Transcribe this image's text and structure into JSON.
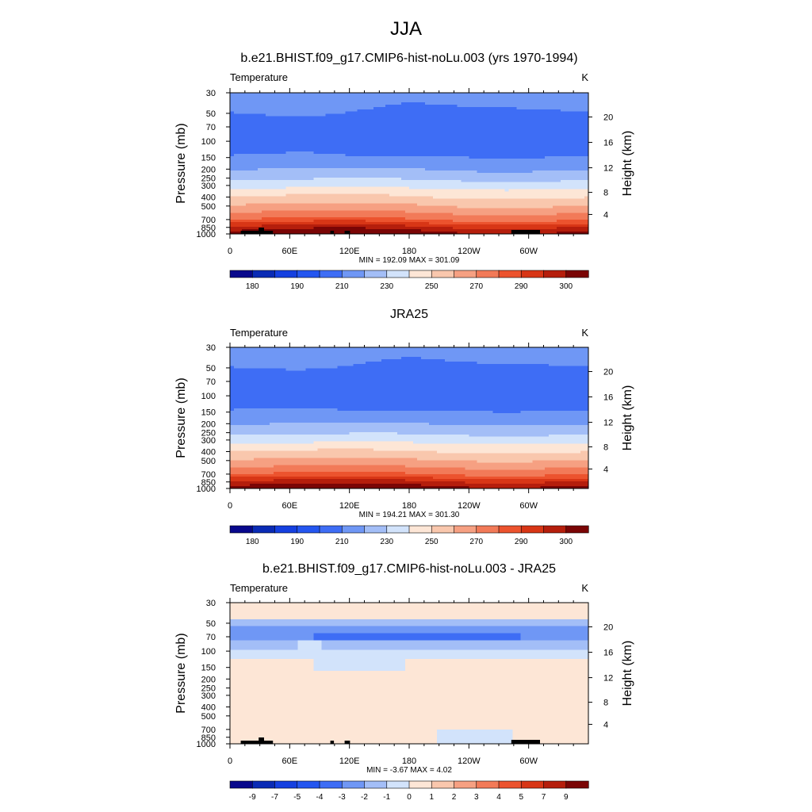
{
  "page_title": "JJA",
  "chart_data": [
    {
      "type": "heatmap",
      "title": "b.e21.BHIST.f09_g17.CMIP6-hist-noLu.003 (yrs 1970-1994)",
      "left_label": "Temperature",
      "right_label": "K",
      "ylabel": "Pressure (mb)",
      "y2label": "Height (km)",
      "x_ticks": [
        "0",
        "60E",
        "120E",
        "180",
        "120W",
        "60W"
      ],
      "pressure_ticks": [
        "30",
        "50",
        "70",
        "100",
        "150",
        "200",
        "250",
        "300",
        "400",
        "500",
        "700",
        "850",
        "1000"
      ],
      "height_ticks": [
        "20",
        "16",
        "12",
        "8",
        "4"
      ],
      "stats": "MIN = 192.09  MAX = 301.09",
      "min": 192.09,
      "max": 301.09,
      "colorbar_labels": [
        "180",
        "190",
        "210",
        "230",
        "250",
        "270",
        "290",
        "300"
      ],
      "palette": [
        "#08088c",
        "#0a2bb5",
        "#1540e0",
        "#2456f0",
        "#3e6df5",
        "#6f97f5",
        "#a3bef7",
        "#d2e3fb",
        "#fde6d6",
        "#f9c7ad",
        "#f6a082",
        "#f27a58",
        "#ec532e",
        "#d83616",
        "#b51e0c",
        "#7a0505"
      ],
      "levels": [
        "192",
        "198",
        "205",
        "210",
        "210",
        "207",
        "216",
        "223",
        "231",
        "240",
        "248",
        "256",
        "264",
        "272",
        "281",
        "289",
        "296"
      ]
    },
    {
      "type": "heatmap",
      "title": "JRA25",
      "left_label": "Temperature",
      "right_label": "K",
      "ylabel": "Pressure (mb)",
      "y2label": "Height (km)",
      "x_ticks": [
        "0",
        "60E",
        "120E",
        "180",
        "120W",
        "60W"
      ],
      "pressure_ticks": [
        "30",
        "50",
        "70",
        "100",
        "150",
        "200",
        "250",
        "300",
        "400",
        "500",
        "700",
        "850",
        "1000"
      ],
      "height_ticks": [
        "20",
        "16",
        "12",
        "8",
        "4"
      ],
      "stats": "MIN = 194.21  MAX = 301.30",
      "min": 194.21,
      "max": 301.3,
      "colorbar_labels": [
        "180",
        "190",
        "210",
        "230",
        "250",
        "270",
        "290",
        "300"
      ],
      "palette": [
        "#08088c",
        "#0a2bb5",
        "#1540e0",
        "#2456f0",
        "#3e6df5",
        "#6f97f5",
        "#a3bef7",
        "#d2e3fb",
        "#fde6d6",
        "#f9c7ad",
        "#f6a082",
        "#f27a58",
        "#ec532e",
        "#d83616",
        "#b51e0c",
        "#7a0505"
      ]
    },
    {
      "type": "heatmap",
      "title": "b.e21.BHIST.f09_g17.CMIP6-hist-noLu.003 - JRA25",
      "left_label": "Temperature",
      "right_label": "K",
      "ylabel": "Pressure (mb)",
      "y2label": "Height (km)",
      "x_ticks": [
        "0",
        "60E",
        "120E",
        "180",
        "120W",
        "60W"
      ],
      "pressure_ticks": [
        "30",
        "50",
        "70",
        "100",
        "150",
        "200",
        "250",
        "300",
        "400",
        "500",
        "700",
        "850",
        "1000"
      ],
      "height_ticks": [
        "20",
        "16",
        "12",
        "8",
        "4"
      ],
      "stats": "MIN =  -3.67  MAX =   4.02",
      "min": -3.67,
      "max": 4.02,
      "colorbar_labels": [
        "-9",
        "-7",
        "-5",
        "-4",
        "-3",
        "-2",
        "-1",
        "0",
        "1",
        "2",
        "3",
        "4",
        "5",
        "7",
        "9"
      ],
      "palette": [
        "#08088c",
        "#0a2bb5",
        "#1540e0",
        "#2456f0",
        "#3e6df5",
        "#6f97f5",
        "#a3bef7",
        "#d2e3fb",
        "#fde6d6",
        "#f9c7ad",
        "#f6a082",
        "#f27a58",
        "#ec532e",
        "#d83616",
        "#b51e0c",
        "#7a0505"
      ]
    }
  ]
}
